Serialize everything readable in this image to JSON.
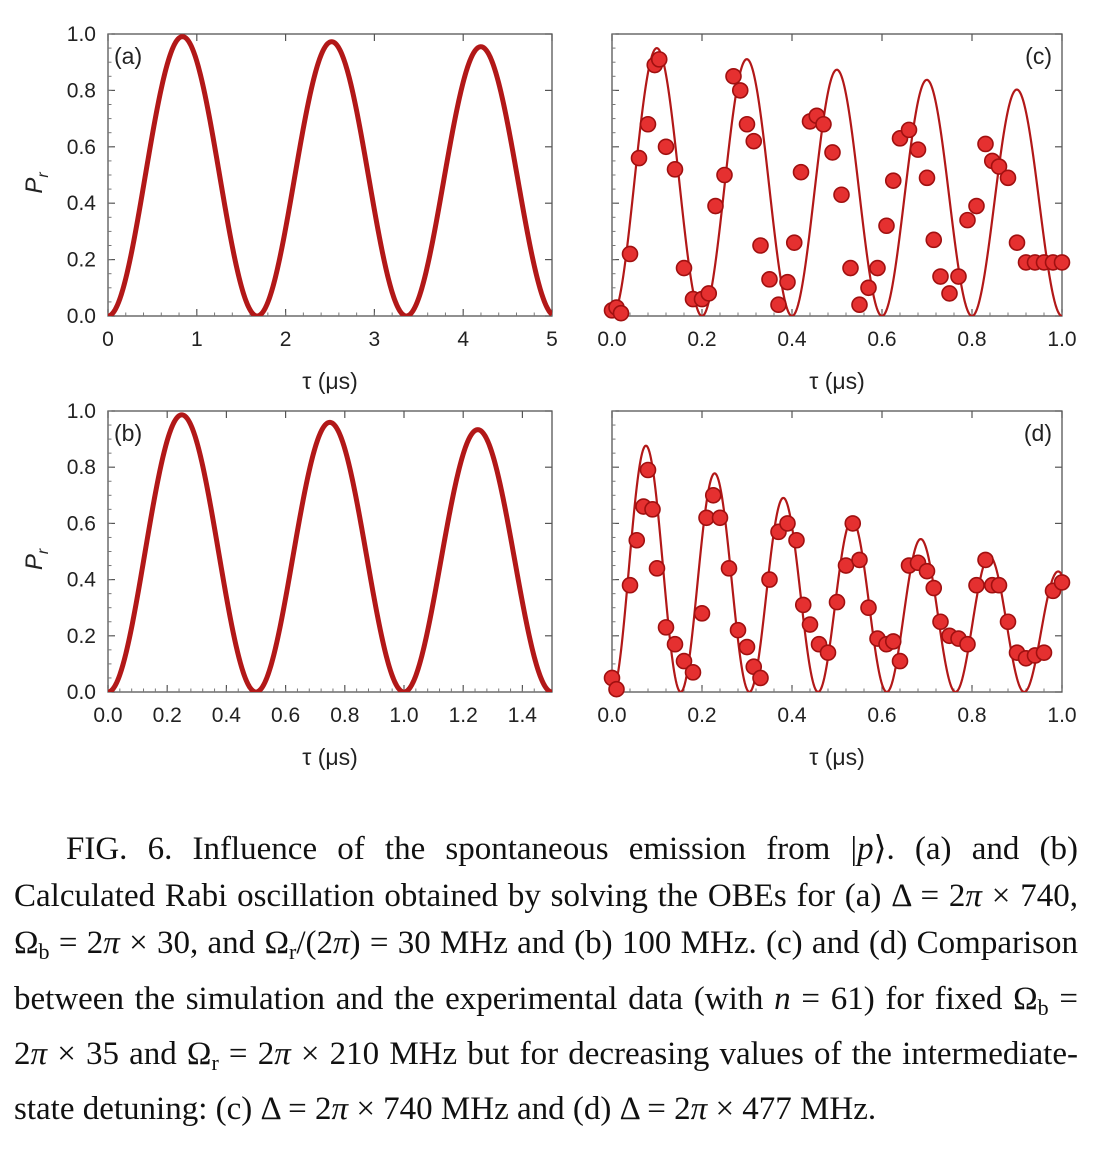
{
  "figure": {
    "panels": [
      {
        "id": "a",
        "label": "(a)",
        "ylabel_main": "P",
        "ylabel_sub": "r",
        "xlabel": "τ (μs)",
        "xticks": [
          "0",
          "1",
          "2",
          "3",
          "4",
          "5"
        ],
        "yticks": [
          "0.0",
          "0.2",
          "0.4",
          "0.6",
          "0.8",
          "1.0"
        ]
      },
      {
        "id": "b",
        "label": "(b)",
        "ylabel_main": "P",
        "ylabel_sub": "r",
        "xlabel": "τ (μs)",
        "xticks": [
          "0.0",
          "0.2",
          "0.4",
          "0.6",
          "0.8",
          "1.0",
          "1.2",
          "1.4"
        ],
        "yticks": [
          "0.0",
          "0.2",
          "0.4",
          "0.6",
          "0.8",
          "1.0"
        ]
      },
      {
        "id": "c",
        "label": "(c)",
        "xlabel": "τ (μs)",
        "xticks": [
          "0.0",
          "0.2",
          "0.4",
          "0.6",
          "0.8",
          "1.0"
        ]
      },
      {
        "id": "d",
        "label": "(d)",
        "xlabel": "τ (μs)",
        "xticks": [
          "0.0",
          "0.2",
          "0.4",
          "0.6",
          "0.8",
          "1.0"
        ]
      }
    ],
    "colors": {
      "curve": "#b21818",
      "point_fill": "#e53030",
      "point_edge": "#a01010"
    }
  },
  "chart_data": [
    {
      "type": "line",
      "panel": "a",
      "xlim": [
        0,
        5
      ],
      "ylim": [
        0,
        1
      ],
      "x": [
        0,
        0.84,
        1.68,
        2.52,
        3.36,
        4.2,
        5.0
      ],
      "y": [
        0,
        0.99,
        0,
        0.97,
        0,
        0.95,
        0.01
      ]
    },
    {
      "type": "line",
      "panel": "b",
      "xlim": [
        0,
        1.5
      ],
      "ylim": [
        0,
        1
      ],
      "x": [
        0,
        0.25,
        0.5,
        0.75,
        1.0,
        1.25,
        1.5
      ],
      "y": [
        0,
        0.98,
        0,
        0.95,
        0,
        0.92,
        0.01
      ]
    },
    {
      "type": "scatter",
      "panel": "c",
      "xlim": [
        0,
        1.0
      ],
      "ylim": [
        0,
        1
      ],
      "x": [
        0.0,
        0.01,
        0.02,
        0.04,
        0.06,
        0.08,
        0.095,
        0.105,
        0.12,
        0.14,
        0.16,
        0.18,
        0.2,
        0.215,
        0.23,
        0.25,
        0.27,
        0.285,
        0.3,
        0.315,
        0.33,
        0.35,
        0.37,
        0.39,
        0.405,
        0.42,
        0.44,
        0.455,
        0.47,
        0.49,
        0.51,
        0.53,
        0.55,
        0.57,
        0.59,
        0.61,
        0.625,
        0.64,
        0.66,
        0.68,
        0.7,
        0.715,
        0.73,
        0.75,
        0.77,
        0.79,
        0.81,
        0.83,
        0.845,
        0.86,
        0.88,
        0.9,
        0.92,
        0.94,
        0.96,
        0.98,
        1.0
      ],
      "y": [
        0.02,
        0.03,
        0.01,
        0.22,
        0.56,
        0.68,
        0.89,
        0.91,
        0.6,
        0.52,
        0.17,
        0.06,
        0.06,
        0.08,
        0.39,
        0.5,
        0.85,
        0.8,
        0.68,
        0.62,
        0.25,
        0.13,
        0.04,
        0.12,
        0.26,
        0.51,
        0.69,
        0.71,
        0.68,
        0.58,
        0.43,
        0.17,
        0.04,
        0.1,
        0.17,
        0.32,
        0.48,
        0.63,
        0.66,
        0.59,
        0.49,
        0.27,
        0.14,
        0.08,
        0.14,
        0.34,
        0.39,
        0.61,
        0.55,
        0.53,
        0.49,
        0.26,
        0.19,
        0.19,
        0.19,
        0.19,
        0.19
      ],
      "fit": {
        "x": [
          0.0,
          0.1,
          0.2,
          0.3,
          0.4,
          0.5,
          0.6,
          0.7,
          0.8,
          0.9,
          1.0
        ],
        "y": [
          0.0,
          0.95,
          0.04,
          0.91,
          0.06,
          0.86,
          0.07,
          0.81,
          0.08,
          0.76,
          0.17
        ]
      }
    },
    {
      "type": "scatter",
      "panel": "d",
      "xlim": [
        0,
        1.0
      ],
      "ylim": [
        0,
        1
      ],
      "x": [
        0.0,
        0.01,
        0.04,
        0.055,
        0.07,
        0.08,
        0.09,
        0.1,
        0.12,
        0.14,
        0.16,
        0.18,
        0.2,
        0.21,
        0.225,
        0.24,
        0.26,
        0.28,
        0.3,
        0.315,
        0.33,
        0.35,
        0.37,
        0.39,
        0.41,
        0.425,
        0.44,
        0.46,
        0.48,
        0.5,
        0.52,
        0.535,
        0.55,
        0.57,
        0.59,
        0.61,
        0.625,
        0.64,
        0.66,
        0.68,
        0.7,
        0.715,
        0.73,
        0.75,
        0.77,
        0.79,
        0.81,
        0.83,
        0.845,
        0.86,
        0.88,
        0.9,
        0.92,
        0.94,
        0.96,
        0.98,
        1.0
      ],
      "y": [
        0.05,
        0.01,
        0.38,
        0.54,
        0.66,
        0.79,
        0.65,
        0.44,
        0.23,
        0.17,
        0.11,
        0.07,
        0.28,
        0.62,
        0.7,
        0.62,
        0.44,
        0.22,
        0.16,
        0.09,
        0.05,
        0.4,
        0.57,
        0.6,
        0.54,
        0.31,
        0.24,
        0.17,
        0.14,
        0.32,
        0.45,
        0.6,
        0.47,
        0.3,
        0.19,
        0.17,
        0.18,
        0.11,
        0.45,
        0.46,
        0.43,
        0.37,
        0.25,
        0.2,
        0.19,
        0.17,
        0.38,
        0.47,
        0.38,
        0.38,
        0.25,
        0.14,
        0.12,
        0.13,
        0.14,
        0.36,
        0.39
      ]
    }
  ],
  "caption": {
    "runs": [
      {
        "t": "FIG. 6. Influence of the spontaneous emission from |"
      },
      {
        "t": "p",
        "s": "it"
      },
      {
        "t": "⟩. (a) and (b) Calculated Rabi oscillation obtained by solving the OBEs for (a) Δ = 2"
      },
      {
        "t": "π",
        "s": "it"
      },
      {
        "t": " × 740, Ω"
      },
      {
        "t": "b",
        "s": "sub"
      },
      {
        "t": " = 2"
      },
      {
        "t": "π",
        "s": "it"
      },
      {
        "t": " × 30, and Ω"
      },
      {
        "t": "r",
        "s": "sub"
      },
      {
        "t": "/(2"
      },
      {
        "t": "π",
        "s": "it"
      },
      {
        "t": ") = 30 MHz and (b) 100 MHz. (c) and (d) Comparison between the simulation and the experimental data (with "
      },
      {
        "t": "n",
        "s": "it"
      },
      {
        "t": " = 61) for fixed Ω"
      },
      {
        "t": "b",
        "s": "sub"
      },
      {
        "t": " = 2"
      },
      {
        "t": "π",
        "s": "it"
      },
      {
        "t": " × 35 and Ω"
      },
      {
        "t": "r",
        "s": "sub"
      },
      {
        "t": " = 2"
      },
      {
        "t": "π",
        "s": "it"
      },
      {
        "t": " × 210 MHz but for decreasing values of the intermediate-state detuning: (c) Δ = 2"
      },
      {
        "t": "π",
        "s": "it"
      },
      {
        "t": " × 740 MHz and (d) Δ = 2"
      },
      {
        "t": "π",
        "s": "it"
      },
      {
        "t": " × 477 MHz."
      }
    ]
  }
}
